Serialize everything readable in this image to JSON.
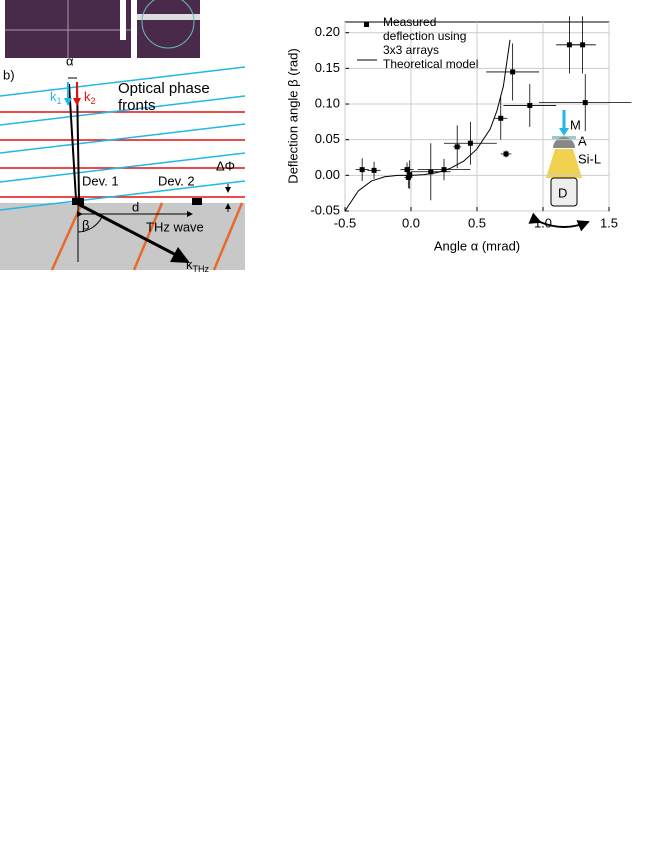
{
  "diagram": {
    "panel_label": "b)",
    "alpha": "α",
    "k1": {
      "main": "k",
      "sub": "1"
    },
    "k2": {
      "main": "k",
      "sub": "2"
    },
    "phase_fronts": "Optical phase fronts",
    "dev1": "Dev. 1",
    "dev2": "Dev. 2",
    "delta_phi": "ΔΦ",
    "d": "d",
    "beta": "β",
    "thz_wave": "THz wave",
    "k_thz": {
      "main": "k",
      "sub": "THz"
    }
  },
  "inset": {
    "m": "M",
    "a": "A",
    "si_l": "Si-L",
    "d": "D"
  },
  "chart_data": {
    "type": "scatter",
    "x_label": "Angle α (mrad)",
    "y_label": "Deflection angle β (rad)",
    "xlim": [
      -0.5,
      1.5
    ],
    "ylim": [
      -0.05,
      0.215
    ],
    "xticks": [
      -0.5,
      {
        "value": 0,
        "label": "0.0"
      },
      0.5,
      {
        "value": 1,
        "label": "1.0"
      },
      1.5
    ],
    "yticks": [
      {
        "value": -0.05,
        "label": "-0.05"
      },
      {
        "value": 0,
        "label": "0.00"
      },
      {
        "value": 0.05,
        "label": "0.05"
      },
      {
        "value": 0.1,
        "label": "0.10"
      },
      {
        "value": 0.15,
        "label": "0.15"
      },
      {
        "value": 0.2,
        "label": "0.20"
      }
    ],
    "grid": true,
    "series": [
      {
        "name": "Measured deflection using 3x3 arrays",
        "color": "#000000",
        "x": [
          -0.37,
          -0.28,
          -0.03,
          -0.02,
          -0.01,
          0.15,
          0.25,
          0.35,
          0.45,
          0.68,
          0.72,
          0.77,
          0.9,
          1.2,
          1.3,
          1.32
        ],
        "y": [
          0.008,
          0.007,
          0.008,
          -0.003,
          0.001,
          0.005,
          0.008,
          0.04,
          0.045,
          0.08,
          0.03,
          0.145,
          0.098,
          0.183,
          0.183,
          0.102
        ],
        "xerr": [
          0.05,
          0.05,
          0.05,
          0.03,
          0.02,
          0.15,
          0.2,
          0.03,
          0.2,
          0.05,
          0.04,
          0.2,
          0.2,
          0.1,
          0.1,
          0.35
        ],
        "yerr": [
          0.016,
          0.012,
          0.01,
          0.015,
          0.02,
          0.04,
          0.015,
          0.03,
          0.03,
          0.03,
          0.005,
          0.04,
          0.03,
          0.04,
          0.04,
          0.04
        ]
      },
      {
        "name": "Theoretical model",
        "color": "#000000",
        "x": [
          -0.5,
          -0.4,
          -0.3,
          -0.2,
          -0.1,
          0,
          0.1,
          0.2,
          0.3,
          0.4,
          0.5,
          0.6,
          0.65,
          0.7,
          0.75
        ],
        "y": [
          -0.05,
          -0.022,
          -0.008,
          -0.002,
          0,
          0,
          0.001,
          0.004,
          0.01,
          0.02,
          0.037,
          0.065,
          0.09,
          0.125,
          0.19
        ]
      }
    ]
  }
}
